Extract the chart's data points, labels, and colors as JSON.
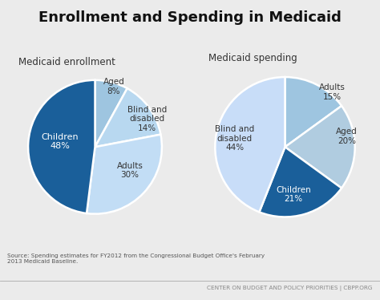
{
  "title": "Enrollment and Spending in Medicaid",
  "title_fontsize": 13,
  "background_color": "#ebebeb",
  "enrollment": {
    "subtitle": "Medicaid enrollment",
    "values": [
      8,
      14,
      30,
      48
    ],
    "colors": [
      "#9ec5e0",
      "#b8d8f0",
      "#c2ddf5",
      "#1a5f9a"
    ],
    "startangle": 90
  },
  "spending": {
    "subtitle": "Medicaid spending",
    "values": [
      15,
      20,
      21,
      44
    ],
    "colors": [
      "#9ec5e0",
      "#b0cce0",
      "#1a5f9a",
      "#c8ddf8"
    ],
    "startangle": 90
  },
  "source_text": "Source: Spending estimates for FY2012 from the Congressional Budget Office's February\n2013 Medicaid Baseline.",
  "footer_text": "CENTER ON BUDGET AND POLICY PRIORITIES | CBPP.ORG",
  "text_color": "#333333",
  "footer_color": "#888888",
  "source_color": "#555555"
}
